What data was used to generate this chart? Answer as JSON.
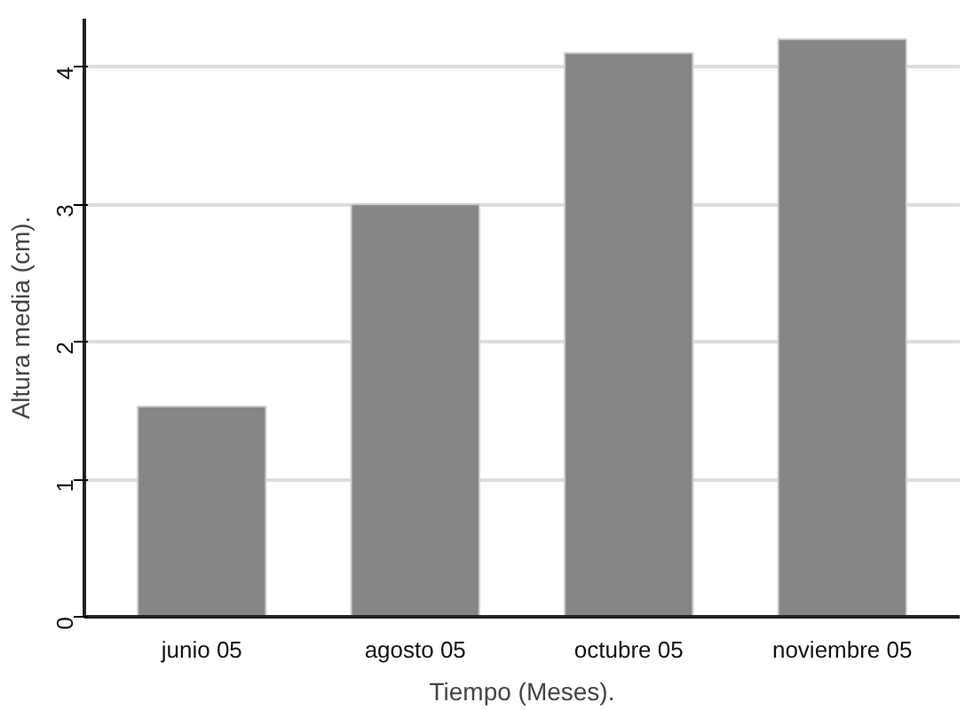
{
  "chart_data": {
    "type": "bar",
    "xlabel": "Tiempo (Meses).",
    "ylabel": "Altura media (cm).",
    "categories": [
      "junio 05",
      "agosto 05",
      "octubre 05",
      "noviembre 05"
    ],
    "values": [
      1.53,
      3.0,
      4.1,
      4.2
    ],
    "color": "#868686",
    "ylim": [
      0,
      4.35
    ],
    "yticks": [
      0,
      1,
      2,
      3,
      4
    ],
    "grid": "y"
  }
}
